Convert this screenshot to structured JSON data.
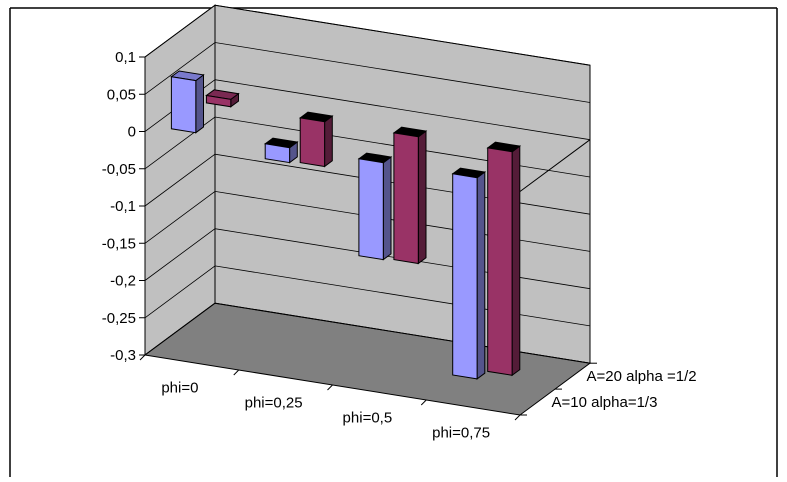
{
  "chart_data": {
    "type": "bar",
    "variant": "3d-clustered-depth",
    "categories": [
      "phi=0",
      "phi=0,25",
      "phi=0,5",
      "phi=0,75"
    ],
    "series": [
      {
        "name": "A=10 alpha=1/3",
        "values": [
          0.07,
          -0.02,
          -0.13,
          -0.27
        ],
        "color": "#9999ff"
      },
      {
        "name": "A=20 alpha =1/2",
        "values": [
          0.01,
          -0.06,
          -0.17,
          -0.3
        ],
        "color": "#993366"
      }
    ],
    "yticks": [
      "0,1",
      "0,05",
      "0",
      "-0,05",
      "-0,1",
      "-0,15",
      "-0,2",
      "-0,25",
      "-0,3"
    ],
    "ylim": [
      -0.3,
      0.1
    ],
    "grid": true,
    "wall_color": "#c0c0c0",
    "floor_color": "#808080",
    "legend": "depth-axis labels (bottom-right)"
  }
}
